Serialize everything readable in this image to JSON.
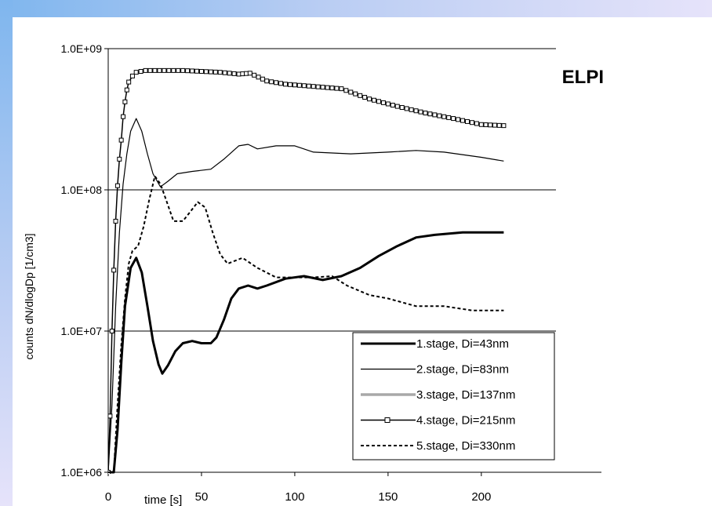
{
  "chart_data": {
    "type": "line",
    "title": "ELPI",
    "xlabel": "time [s]",
    "ylabel": "counts dN/dlogDp [1/cm3]",
    "yscale": "log",
    "xlim": [
      0,
      240
    ],
    "ylim": [
      1000000,
      1000000000
    ],
    "x_ticks": [
      "0",
      "50",
      "100",
      "150",
      "200"
    ],
    "y_ticks": [
      "1.0E+06",
      "1.0E+07",
      "1.0E+08",
      "1.0E+09"
    ],
    "grid": "horizontal",
    "legend_position": "bottom-right",
    "colors": {
      "background_gradient_start": "#7fb6ee",
      "background_gradient_end": "#e6e3fa",
      "stage3": "#a8a8a8"
    },
    "series": [
      {
        "name": "1.stage, Di=43nm",
        "style": "thick-solid",
        "points": [
          [
            0,
            1000000
          ],
          [
            3,
            1000000
          ],
          [
            5,
            2000000
          ],
          [
            7,
            6000000
          ],
          [
            9,
            15000000
          ],
          [
            12,
            28000000
          ],
          [
            15,
            33000000
          ],
          [
            18,
            26000000
          ],
          [
            21,
            15000000
          ],
          [
            24,
            8500000
          ],
          [
            27,
            5800000
          ],
          [
            29,
            5000000
          ],
          [
            32,
            5700000
          ],
          [
            36,
            7200000
          ],
          [
            40,
            8200000
          ],
          [
            45,
            8500000
          ],
          [
            50,
            8200000
          ],
          [
            55,
            8200000
          ],
          [
            58,
            9000000
          ],
          [
            62,
            12000000
          ],
          [
            66,
            17000000
          ],
          [
            70,
            20000000
          ],
          [
            75,
            21000000
          ],
          [
            80,
            20000000
          ],
          [
            85,
            21000000
          ],
          [
            95,
            23500000
          ],
          [
            105,
            24500000
          ],
          [
            115,
            23000000
          ],
          [
            125,
            24500000
          ],
          [
            135,
            28000000
          ],
          [
            145,
            34000000
          ],
          [
            155,
            40000000
          ],
          [
            165,
            46000000
          ],
          [
            175,
            48000000
          ],
          [
            190,
            50000000
          ],
          [
            200,
            50000000
          ],
          [
            212,
            50000000
          ]
        ]
      },
      {
        "name": "2.stage, Di=83nm",
        "style": "thin-solid",
        "points": [
          [
            0,
            1000000
          ],
          [
            2,
            3000000
          ],
          [
            4,
            15000000
          ],
          [
            6,
            50000000
          ],
          [
            8,
            110000000
          ],
          [
            10,
            180000000
          ],
          [
            12,
            260000000
          ],
          [
            15,
            320000000
          ],
          [
            18,
            260000000
          ],
          [
            21,
            180000000
          ],
          [
            24,
            130000000
          ],
          [
            28,
            105000000
          ],
          [
            32,
            115000000
          ],
          [
            37,
            130000000
          ],
          [
            45,
            135000000
          ],
          [
            55,
            140000000
          ],
          [
            62,
            165000000
          ],
          [
            70,
            205000000
          ],
          [
            75,
            210000000
          ],
          [
            80,
            195000000
          ],
          [
            90,
            205000000
          ],
          [
            100,
            205000000
          ],
          [
            110,
            185000000
          ],
          [
            130,
            180000000
          ],
          [
            150,
            185000000
          ],
          [
            165,
            190000000
          ],
          [
            180,
            185000000
          ],
          [
            200,
            170000000
          ],
          [
            212,
            160000000
          ]
        ]
      },
      {
        "name": "3.stage, Di=137nm",
        "style": "thick-grey",
        "points": []
      },
      {
        "name": "4.stage, Di=215nm",
        "style": "square-markers",
        "points": [
          [
            0,
            1000000
          ],
          [
            1,
            2500000
          ],
          [
            2,
            10000000
          ],
          [
            3,
            27000000
          ],
          [
            4,
            60000000
          ],
          [
            5,
            107000000
          ],
          [
            6,
            165000000
          ],
          [
            7,
            225000000
          ],
          [
            8,
            330000000
          ],
          [
            9,
            420000000
          ],
          [
            10,
            510000000
          ],
          [
            11,
            580000000
          ],
          [
            13,
            640000000
          ],
          [
            15,
            680000000
          ],
          [
            20,
            700000000
          ],
          [
            40,
            700000000
          ],
          [
            60,
            680000000
          ],
          [
            70,
            660000000
          ],
          [
            76,
            670000000
          ],
          [
            85,
            590000000
          ],
          [
            95,
            560000000
          ],
          [
            110,
            540000000
          ],
          [
            125,
            520000000
          ],
          [
            140,
            440000000
          ],
          [
            155,
            390000000
          ],
          [
            170,
            350000000
          ],
          [
            185,
            320000000
          ],
          [
            200,
            290000000
          ],
          [
            212,
            285000000
          ]
        ]
      },
      {
        "name": "5.stage, Di=330nm",
        "style": "dashed",
        "points": [
          [
            0,
            1000000
          ],
          [
            3,
            1000000
          ],
          [
            5,
            3000000
          ],
          [
            7,
            8000000
          ],
          [
            9,
            17000000
          ],
          [
            11,
            30000000
          ],
          [
            13,
            37000000
          ],
          [
            16,
            40000000
          ],
          [
            19,
            55000000
          ],
          [
            22,
            85000000
          ],
          [
            25,
            125000000
          ],
          [
            28,
            110000000
          ],
          [
            31,
            85000000
          ],
          [
            35,
            60000000
          ],
          [
            40,
            60000000
          ],
          [
            44,
            70000000
          ],
          [
            48,
            82000000
          ],
          [
            52,
            75000000
          ],
          [
            56,
            50000000
          ],
          [
            60,
            35000000
          ],
          [
            64,
            30000000
          ],
          [
            72,
            33000000
          ],
          [
            80,
            28000000
          ],
          [
            90,
            24000000
          ],
          [
            110,
            24000000
          ],
          [
            120,
            24500000
          ],
          [
            128,
            21000000
          ],
          [
            140,
            18000000
          ],
          [
            150,
            17000000
          ],
          [
            165,
            15000000
          ],
          [
            180,
            15000000
          ],
          [
            195,
            14000000
          ],
          [
            212,
            14000000
          ]
        ]
      }
    ]
  }
}
